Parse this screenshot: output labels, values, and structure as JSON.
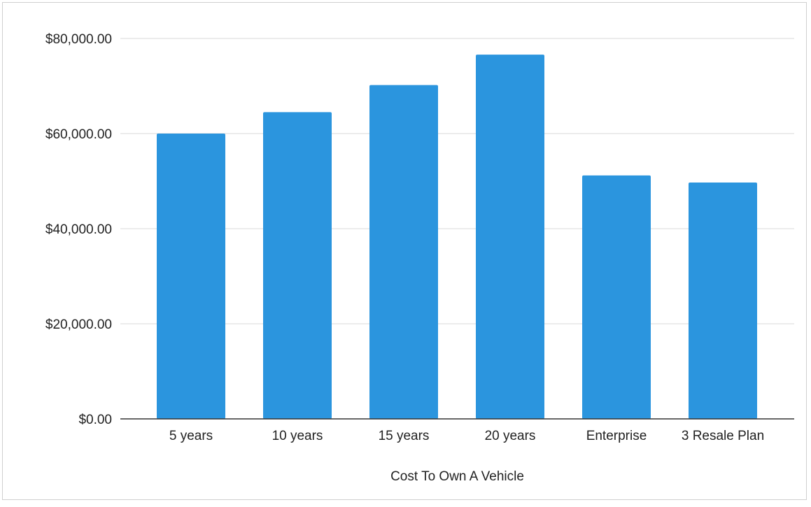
{
  "chart_data": {
    "type": "bar",
    "title": "",
    "xlabel": "Cost To Own A Vehicle",
    "ylabel": "",
    "categories": [
      "5 years",
      "10 years",
      "15 years",
      "20 years",
      "Enterprise",
      "3 Resale Plan"
    ],
    "values": [
      60000,
      64500,
      70200,
      76600,
      51200,
      49700
    ],
    "ylim": [
      0,
      80000
    ],
    "yticks": [
      0,
      20000,
      40000,
      60000,
      80000
    ],
    "ytick_labels": [
      "$0.00",
      "$20,000.00",
      "$40,000.00",
      "$60,000.00",
      "$80,000.00"
    ],
    "grid": true,
    "legend": "none",
    "colors": {
      "bar": "#2b95de",
      "grid": "#d9d9d9",
      "axis": "#333333"
    }
  }
}
